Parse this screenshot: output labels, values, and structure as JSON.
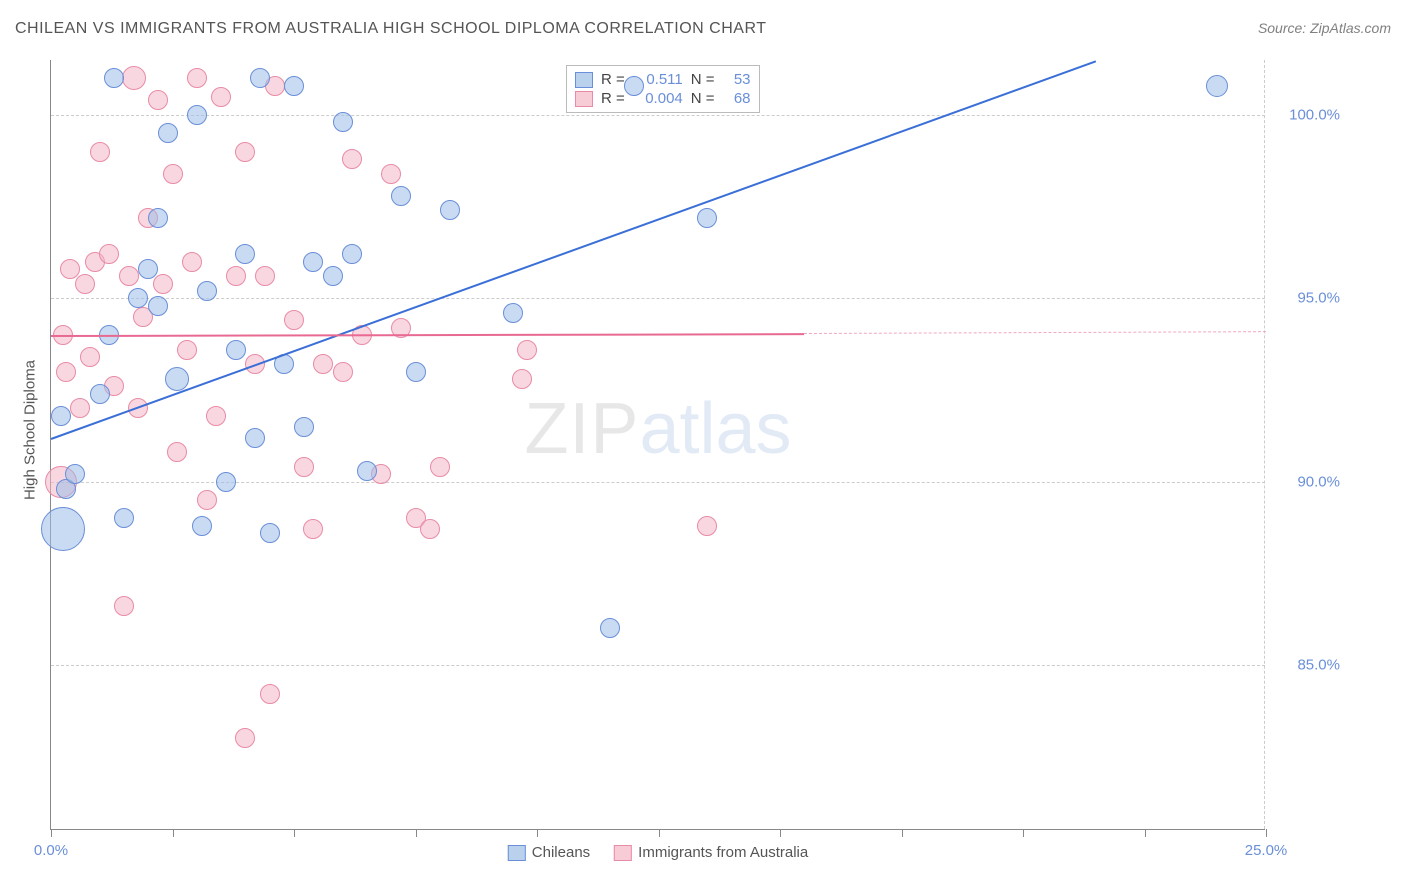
{
  "title": "CHILEAN VS IMMIGRANTS FROM AUSTRALIA HIGH SCHOOL DIPLOMA CORRELATION CHART",
  "source": "Source: ZipAtlas.com",
  "y_axis_title": "High School Diploma",
  "watermark_a": "ZIP",
  "watermark_b": "atlas",
  "chart": {
    "type": "scatter",
    "xlim": [
      0,
      25
    ],
    "ylim": [
      80.5,
      101.5
    ],
    "y_ticks": [
      85.0,
      90.0,
      95.0,
      100.0
    ],
    "y_tick_labels": [
      "85.0%",
      "90.0%",
      "95.0%",
      "100.0%"
    ],
    "x_ticks": [
      0,
      2.5,
      5,
      7.5,
      10,
      12.5,
      15,
      17.5,
      20,
      22.5,
      25
    ],
    "x_tick_labels": {
      "0": "0.0%",
      "25": "25.0%"
    },
    "grid_color": "#cccccc",
    "background_color": "#ffffff",
    "axis_color": "#888888"
  },
  "series": {
    "blue": {
      "label": "Chileans",
      "fill": "rgba(156,189,231,0.55)",
      "stroke": "#6a8fd8",
      "r_value": "0.511",
      "n_value": "53",
      "trend": {
        "x1": 0,
        "y1": 91.2,
        "x2": 21.5,
        "y2": 101.5,
        "color": "#3a6fd8"
      },
      "points": [
        {
          "x": 0.2,
          "y": 91.8,
          "r": 10
        },
        {
          "x": 0.3,
          "y": 89.8,
          "r": 10
        },
        {
          "x": 0.25,
          "y": 88.7,
          "r": 22
        },
        {
          "x": 0.5,
          "y": 90.2,
          "r": 10
        },
        {
          "x": 1.0,
          "y": 92.4,
          "r": 10
        },
        {
          "x": 1.2,
          "y": 94.0,
          "r": 10
        },
        {
          "x": 1.3,
          "y": 101.0,
          "r": 10
        },
        {
          "x": 1.5,
          "y": 89.0,
          "r": 10
        },
        {
          "x": 1.8,
          "y": 95.0,
          "r": 10
        },
        {
          "x": 2.0,
          "y": 95.8,
          "r": 10
        },
        {
          "x": 2.2,
          "y": 97.2,
          "r": 10
        },
        {
          "x": 2.2,
          "y": 94.8,
          "r": 10
        },
        {
          "x": 2.4,
          "y": 99.5,
          "r": 10
        },
        {
          "x": 2.6,
          "y": 92.8,
          "r": 12
        },
        {
          "x": 3.0,
          "y": 100.0,
          "r": 10
        },
        {
          "x": 3.1,
          "y": 88.8,
          "r": 10
        },
        {
          "x": 3.2,
          "y": 95.2,
          "r": 10
        },
        {
          "x": 3.6,
          "y": 90.0,
          "r": 10
        },
        {
          "x": 3.8,
          "y": 93.6,
          "r": 10
        },
        {
          "x": 4.0,
          "y": 96.2,
          "r": 10
        },
        {
          "x": 4.2,
          "y": 91.2,
          "r": 10
        },
        {
          "x": 4.3,
          "y": 101.0,
          "r": 10
        },
        {
          "x": 4.5,
          "y": 88.6,
          "r": 10
        },
        {
          "x": 4.8,
          "y": 93.2,
          "r": 10
        },
        {
          "x": 5.0,
          "y": 100.8,
          "r": 10
        },
        {
          "x": 5.2,
          "y": 91.5,
          "r": 10
        },
        {
          "x": 5.4,
          "y": 96.0,
          "r": 10
        },
        {
          "x": 5.8,
          "y": 95.6,
          "r": 10
        },
        {
          "x": 6.0,
          "y": 99.8,
          "r": 10
        },
        {
          "x": 6.2,
          "y": 96.2,
          "r": 10
        },
        {
          "x": 6.5,
          "y": 90.3,
          "r": 10
        },
        {
          "x": 7.2,
          "y": 97.8,
          "r": 10
        },
        {
          "x": 7.5,
          "y": 93.0,
          "r": 10
        },
        {
          "x": 8.2,
          "y": 97.4,
          "r": 10
        },
        {
          "x": 9.5,
          "y": 94.6,
          "r": 10
        },
        {
          "x": 11.5,
          "y": 86.0,
          "r": 10
        },
        {
          "x": 12.0,
          "y": 100.8,
          "r": 10
        },
        {
          "x": 13.5,
          "y": 97.2,
          "r": 10
        },
        {
          "x": 24.0,
          "y": 100.8,
          "r": 11
        }
      ]
    },
    "pink": {
      "label": "Immigrants from Australia",
      "fill": "rgba(244,182,198,0.55)",
      "stroke": "#e88ba6",
      "r_value": "0.004",
      "n_value": "68",
      "trend": {
        "x1": 0,
        "y1": 94.0,
        "x2": 15.5,
        "y2": 94.05,
        "color": "#e86a92"
      },
      "trend_dash": {
        "x1": 15.5,
        "y1": 94.05,
        "x2": 25,
        "y2": 94.1
      },
      "points": [
        {
          "x": 0.2,
          "y": 90.0,
          "r": 16
        },
        {
          "x": 0.25,
          "y": 94.0,
          "r": 10
        },
        {
          "x": 0.3,
          "y": 93.0,
          "r": 10
        },
        {
          "x": 0.4,
          "y": 95.8,
          "r": 10
        },
        {
          "x": 0.6,
          "y": 92.0,
          "r": 10
        },
        {
          "x": 0.7,
          "y": 95.4,
          "r": 10
        },
        {
          "x": 0.8,
          "y": 93.4,
          "r": 10
        },
        {
          "x": 0.9,
          "y": 96.0,
          "r": 10
        },
        {
          "x": 1.0,
          "y": 99.0,
          "r": 10
        },
        {
          "x": 1.2,
          "y": 96.2,
          "r": 10
        },
        {
          "x": 1.3,
          "y": 92.6,
          "r": 10
        },
        {
          "x": 1.5,
          "y": 86.6,
          "r": 10
        },
        {
          "x": 1.6,
          "y": 95.6,
          "r": 10
        },
        {
          "x": 1.7,
          "y": 101.0,
          "r": 12
        },
        {
          "x": 1.8,
          "y": 92.0,
          "r": 10
        },
        {
          "x": 1.9,
          "y": 94.5,
          "r": 10
        },
        {
          "x": 2.0,
          "y": 97.2,
          "r": 10
        },
        {
          "x": 2.2,
          "y": 100.4,
          "r": 10
        },
        {
          "x": 2.3,
          "y": 95.4,
          "r": 10
        },
        {
          "x": 2.5,
          "y": 98.4,
          "r": 10
        },
        {
          "x": 2.6,
          "y": 90.8,
          "r": 10
        },
        {
          "x": 2.8,
          "y": 93.6,
          "r": 10
        },
        {
          "x": 2.9,
          "y": 96.0,
          "r": 10
        },
        {
          "x": 3.0,
          "y": 101.0,
          "r": 10
        },
        {
          "x": 3.2,
          "y": 89.5,
          "r": 10
        },
        {
          "x": 3.4,
          "y": 91.8,
          "r": 10
        },
        {
          "x": 3.5,
          "y": 100.5,
          "r": 10
        },
        {
          "x": 3.8,
          "y": 95.6,
          "r": 10
        },
        {
          "x": 4.0,
          "y": 83.0,
          "r": 10
        },
        {
          "x": 4.0,
          "y": 99.0,
          "r": 10
        },
        {
          "x": 4.2,
          "y": 93.2,
          "r": 10
        },
        {
          "x": 4.4,
          "y": 95.6,
          "r": 10
        },
        {
          "x": 4.5,
          "y": 84.2,
          "r": 10
        },
        {
          "x": 4.6,
          "y": 100.8,
          "r": 10
        },
        {
          "x": 5.0,
          "y": 94.4,
          "r": 10
        },
        {
          "x": 5.2,
          "y": 90.4,
          "r": 10
        },
        {
          "x": 5.4,
          "y": 88.7,
          "r": 10
        },
        {
          "x": 5.6,
          "y": 93.2,
          "r": 10
        },
        {
          "x": 6.0,
          "y": 93.0,
          "r": 10
        },
        {
          "x": 6.2,
          "y": 98.8,
          "r": 10
        },
        {
          "x": 6.4,
          "y": 94.0,
          "r": 10
        },
        {
          "x": 6.8,
          "y": 90.2,
          "r": 10
        },
        {
          "x": 7.0,
          "y": 98.4,
          "r": 10
        },
        {
          "x": 7.2,
          "y": 94.2,
          "r": 10
        },
        {
          "x": 7.5,
          "y": 89.0,
          "r": 10
        },
        {
          "x": 7.8,
          "y": 88.7,
          "r": 10
        },
        {
          "x": 8.0,
          "y": 90.4,
          "r": 10
        },
        {
          "x": 9.7,
          "y": 92.8,
          "r": 10
        },
        {
          "x": 9.8,
          "y": 93.6,
          "r": 10
        },
        {
          "x": 13.5,
          "y": 88.8,
          "r": 10
        }
      ]
    }
  },
  "stats_box": {
    "r_label": "R =",
    "n_label": "N ="
  },
  "legend": {
    "blue": "Chileans",
    "pink": "Immigrants from Australia"
  }
}
